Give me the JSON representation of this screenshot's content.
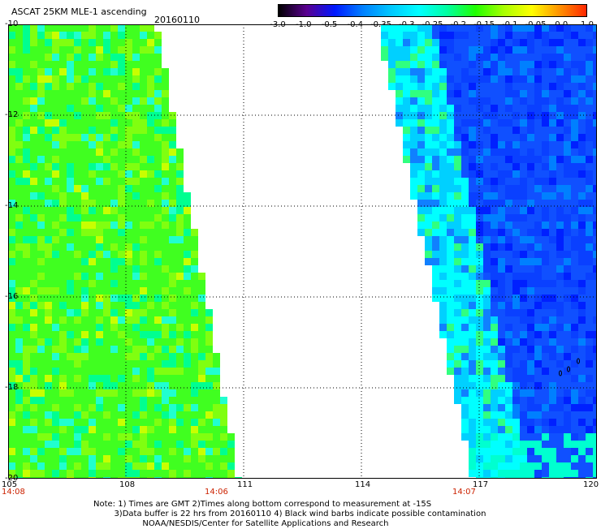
{
  "header": {
    "title": "ASCAT 25KM MLE-1 ascending",
    "date": "20160110"
  },
  "colorbar": {
    "labels": [
      "-3.0",
      "-1.0",
      "-0.5",
      "-0.4",
      "-0.35",
      "-0.3",
      "-0.25",
      "-0.2",
      "-0.15",
      "-0.1",
      "-0.05",
      "0.0",
      "1.0"
    ],
    "colors": [
      "#000000",
      "#5a0090",
      "#0018ff",
      "#0080ff",
      "#00c8ff",
      "#00ffff",
      "#00ffa0",
      "#20ff00",
      "#a8ff00",
      "#ffff00",
      "#ff9000",
      "#ff2000"
    ]
  },
  "axes": {
    "lat_labels": [
      "-10",
      "-12",
      "-14",
      "-16",
      "-18",
      "-20"
    ],
    "lon_labels": [
      "105",
      "108",
      "111",
      "114",
      "117",
      "120"
    ]
  },
  "times": [
    "14:08",
    "14:06",
    "14:07"
  ],
  "note": {
    "line1": "Note: 1) Times are GMT 2)Times along bottom correspond to measurement at -15S",
    "line2": "3)Data buffer is 22 hrs from 20160110 4) Black wind barbs indicate possible contamination",
    "line3": "NOAA/NESDIS/Center for Satellite Applications and Research"
  }
}
